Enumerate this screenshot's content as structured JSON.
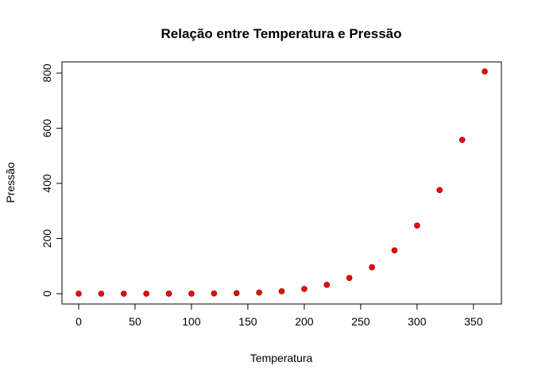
{
  "chart_data": {
    "type": "scatter",
    "title": "Relação entre Temperatura e Pressão",
    "xlabel": "Temperatura",
    "ylabel": "Pressão",
    "x": [
      0,
      20,
      40,
      60,
      80,
      100,
      120,
      140,
      160,
      180,
      200,
      220,
      240,
      260,
      280,
      300,
      320,
      340,
      360
    ],
    "y": [
      0.0002,
      0.0012,
      0.006,
      0.03,
      0.09,
      0.27,
      0.75,
      1.85,
      4.2,
      8.8,
      17.3,
      32.1,
      57,
      96,
      157,
      247,
      376,
      558,
      806
    ],
    "xlim": [
      0,
      360
    ],
    "ylim": [
      0,
      806
    ],
    "xticks": [
      "0",
      "50",
      "100",
      "150",
      "200",
      "250",
      "300",
      "350"
    ],
    "yticks": [
      "0",
      "200",
      "400",
      "600",
      "800"
    ],
    "marker_color": "#ff0000",
    "marker_edge_color": "#8b0000",
    "grid": false,
    "legend": "none"
  }
}
